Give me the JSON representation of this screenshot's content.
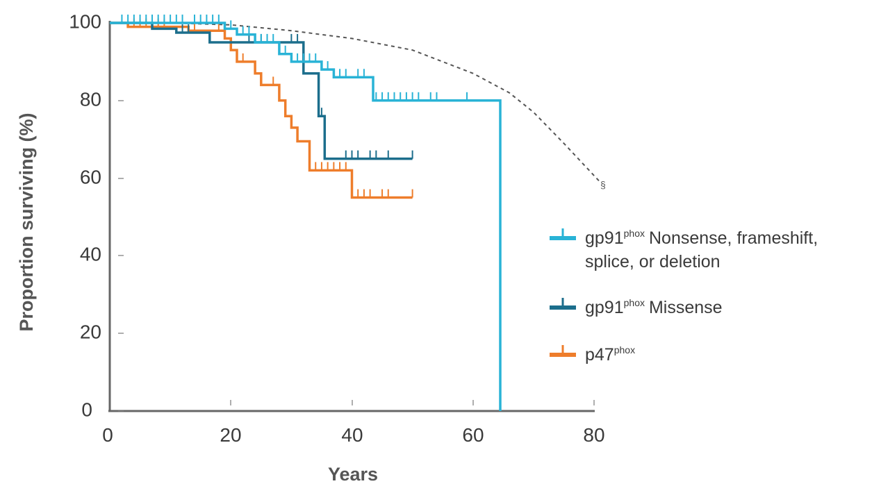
{
  "chart_data": {
    "type": "line",
    "step": true,
    "title": "",
    "xlabel": "Years",
    "ylabel": "Proportion surviving (%)",
    "xlim": [
      0,
      80
    ],
    "ylim": [
      0,
      100
    ],
    "x_ticks": [
      "0",
      "20",
      "40",
      "60",
      "80"
    ],
    "y_ticks": [
      "0",
      "20",
      "40",
      "60",
      "80",
      "100"
    ],
    "grid": false,
    "legend_position": "right",
    "series": [
      {
        "name_main": "gp91",
        "name_sup": "phox",
        "name_rest": "Nonsense, frameshift,",
        "name_line2": "splice, or deletion",
        "color": "#29b3d6",
        "points": [
          [
            0,
            100
          ],
          [
            19,
            100
          ],
          [
            19,
            98.5
          ],
          [
            21,
            98.5
          ],
          [
            21,
            97
          ],
          [
            24,
            97
          ],
          [
            24,
            95
          ],
          [
            28,
            95
          ],
          [
            28,
            92
          ],
          [
            30,
            92
          ],
          [
            30,
            90
          ],
          [
            35,
            90
          ],
          [
            35,
            88
          ],
          [
            37,
            88
          ],
          [
            37,
            86
          ],
          [
            43.5,
            86
          ],
          [
            43.5,
            80
          ],
          [
            64.5,
            80
          ],
          [
            64.5,
            0
          ]
        ],
        "censor_x": [
          2,
          3,
          4,
          5,
          6,
          7,
          8,
          9,
          10,
          11,
          12,
          14,
          15,
          16,
          17,
          18,
          20,
          22,
          23,
          25,
          26,
          27,
          29,
          31,
          32,
          33,
          34,
          36,
          38,
          39,
          41,
          42,
          44,
          45,
          46,
          47,
          48,
          49,
          50,
          51,
          53,
          54,
          59
        ]
      },
      {
        "name_main": "gp91",
        "name_sup": "phox",
        "name_rest": "Missense",
        "name_line2": "",
        "color": "#1c6e8c",
        "points": [
          [
            0,
            100
          ],
          [
            7,
            100
          ],
          [
            7,
            98.5
          ],
          [
            11,
            98.5
          ],
          [
            11,
            97.5
          ],
          [
            16.5,
            97.5
          ],
          [
            16.5,
            95
          ],
          [
            32,
            95
          ],
          [
            32,
            87
          ],
          [
            34.5,
            87
          ],
          [
            34.5,
            76
          ],
          [
            35.5,
            76
          ],
          [
            35.5,
            65
          ],
          [
            50,
            65
          ]
        ],
        "censor_x": [
          12,
          13,
          23,
          24,
          25,
          26,
          30,
          31,
          35,
          39,
          40,
          41,
          43,
          44,
          46,
          50
        ]
      },
      {
        "name_main": "p47",
        "name_sup": "phox",
        "name_rest": "",
        "name_line2": "",
        "color": "#ee7d2b",
        "points": [
          [
            0,
            100
          ],
          [
            3,
            100
          ],
          [
            3,
            99
          ],
          [
            13,
            99
          ],
          [
            13,
            98
          ],
          [
            19,
            98
          ],
          [
            19,
            96
          ],
          [
            20,
            96
          ],
          [
            20,
            93
          ],
          [
            21,
            93
          ],
          [
            21,
            90
          ],
          [
            24,
            90
          ],
          [
            24,
            87
          ],
          [
            25,
            87
          ],
          [
            25,
            84
          ],
          [
            28,
            84
          ],
          [
            28,
            80
          ],
          [
            29,
            80
          ],
          [
            29,
            76
          ],
          [
            30,
            76
          ],
          [
            30,
            73
          ],
          [
            31,
            73
          ],
          [
            31,
            69.5
          ],
          [
            33,
            69.5
          ],
          [
            33,
            62
          ],
          [
            40,
            62
          ],
          [
            40,
            55
          ],
          [
            50,
            55
          ]
        ],
        "censor_x": [
          4,
          5,
          6,
          7,
          8,
          9,
          14,
          18,
          20,
          21,
          22,
          27,
          28,
          29,
          34,
          35,
          36,
          37,
          38,
          39,
          41,
          42,
          43,
          45,
          46,
          50
        ]
      }
    ],
    "reference_curve": {
      "style": "dashed",
      "color": "#555555",
      "points": [
        [
          10,
          100
        ],
        [
          20,
          99.5
        ],
        [
          30,
          98
        ],
        [
          40,
          96
        ],
        [
          50,
          93
        ],
        [
          60,
          87
        ],
        [
          66,
          82
        ],
        [
          70,
          77
        ],
        [
          75,
          69
        ],
        [
          81,
          59
        ]
      ],
      "annotation": "§"
    }
  }
}
